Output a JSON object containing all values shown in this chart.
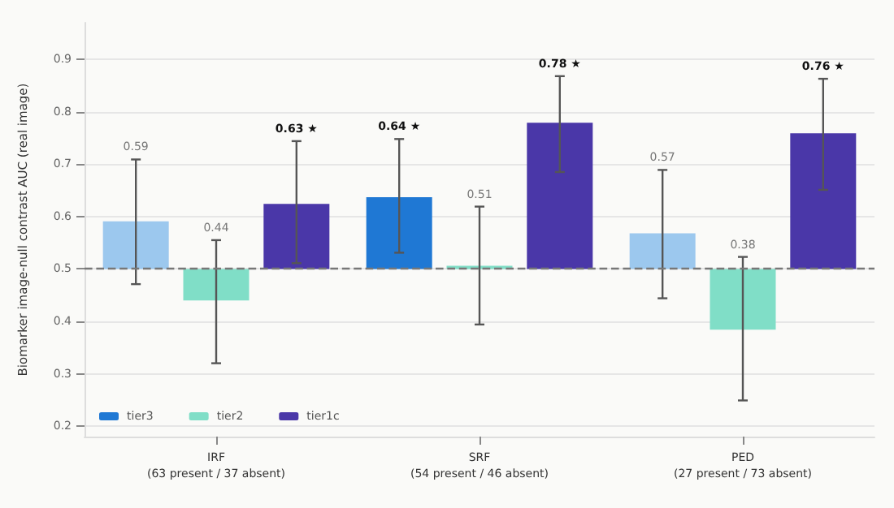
{
  "chart_data": {
    "type": "bar",
    "ylabel": "Biomarker image-null contrast AUC (real image)",
    "categories": [
      "IRF\n(63 present / 37 absent)",
      "SRF\n(54 present / 46 absent)",
      "PED\n(27 present / 73 absent)"
    ],
    "series": [
      {
        "name": "tier3",
        "color": "#1f78d4",
        "colors": [
          "#9cc8ee",
          "#1f78d4",
          "#9cc8ee"
        ],
        "base": [
          0.5,
          0.5,
          0.5
        ],
        "values": [
          0.091,
          0.137,
          0.068
        ],
        "errors": [
          [
            0.471,
            0.709
          ],
          [
            0.531,
            0.748
          ],
          [
            0.444,
            0.689
          ]
        ]
      },
      {
        "name": "tier2",
        "color": "#80dec7",
        "colors": [
          "#80dec7",
          "#80dec7",
          "#80dec7"
        ],
        "base": [
          0.5,
          0.5,
          0.5
        ],
        "values": [
          -0.06,
          0.006,
          -0.116
        ],
        "errors": [
          [
            0.32,
            0.555
          ],
          [
            0.394,
            0.619
          ],
          [
            0.249,
            0.523
          ]
        ]
      },
      {
        "name": "tier1c",
        "color": "#4a37a8",
        "colors": [
          "#4a37a8",
          "#4a37a8",
          "#4a37a8"
        ],
        "base": [
          0.5,
          0.5,
          0.5
        ],
        "values": [
          0.124,
          0.279,
          0.259
        ],
        "errors": [
          [
            0.511,
            0.744
          ],
          [
            0.685,
            0.868
          ],
          [
            0.651,
            0.863
          ]
        ]
      }
    ],
    "annotations": [
      "0.59",
      "0.44",
      "0.63 ★",
      "0.64 ★",
      "0.51",
      "0.78 ★",
      "0.57",
      "0.38",
      "0.76 ★"
    ],
    "ylim": [
      0.18,
      0.97
    ],
    "yticks": [
      0.2,
      0.3,
      0.4,
      0.5,
      0.6,
      0.7,
      0.8,
      0.9
    ],
    "ref_lines": [
      {
        "axis": "y",
        "value": 0.5,
        "color": "#777777",
        "line_style": "dashed"
      }
    ],
    "grid": "y",
    "legend": "bottom left"
  }
}
